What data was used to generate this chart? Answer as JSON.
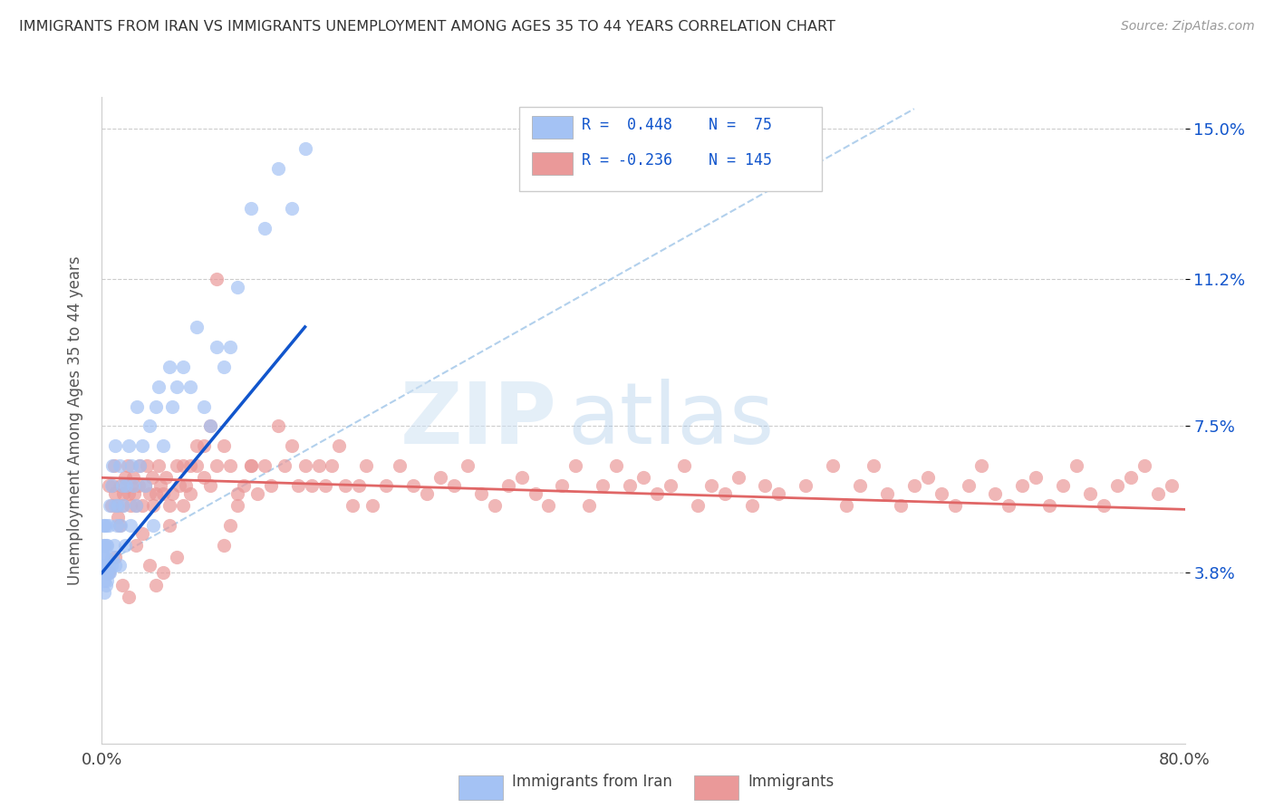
{
  "title": "IMMIGRANTS FROM IRAN VS IMMIGRANTS UNEMPLOYMENT AMONG AGES 35 TO 44 YEARS CORRELATION CHART",
  "source": "Source: ZipAtlas.com",
  "ylabel_ticks": [
    0.038,
    0.075,
    0.112,
    0.15
  ],
  "ylabel_tick_labels": [
    "3.8%",
    "7.5%",
    "11.2%",
    "15.0%"
  ],
  "ylabel": "Unemployment Among Ages 35 to 44 years",
  "legend_labels": [
    "Immigrants from Iran",
    "Immigrants"
  ],
  "legend_R1": "R =  0.448",
  "legend_R2": "R = -0.236",
  "legend_N1": "N =  75",
  "legend_N2": "N = 145",
  "blue_color": "#a4c2f4",
  "pink_color": "#ea9999",
  "blue_fill_color": "#a4c2f4",
  "pink_fill_color": "#f4cccc",
  "blue_line_color": "#1155cc",
  "pink_line_color": "#e06666",
  "diagonal_color": "#9fc5e8",
  "watermark_zip": "ZIP",
  "watermark_atlas": "atlas",
  "xmin": 0.0,
  "xmax": 0.8,
  "ymin": -0.005,
  "ymax": 0.158,
  "blue_scatter_x": [
    0.001,
    0.001,
    0.001,
    0.001,
    0.001,
    0.002,
    0.002,
    0.002,
    0.002,
    0.002,
    0.002,
    0.002,
    0.003,
    0.003,
    0.003,
    0.003,
    0.003,
    0.003,
    0.004,
    0.004,
    0.004,
    0.004,
    0.005,
    0.005,
    0.005,
    0.006,
    0.006,
    0.007,
    0.007,
    0.008,
    0.008,
    0.009,
    0.01,
    0.01,
    0.01,
    0.011,
    0.012,
    0.013,
    0.013,
    0.014,
    0.015,
    0.016,
    0.017,
    0.018,
    0.02,
    0.021,
    0.022,
    0.023,
    0.025,
    0.026,
    0.028,
    0.03,
    0.032,
    0.035,
    0.038,
    0.04,
    0.042,
    0.045,
    0.05,
    0.052,
    0.055,
    0.06,
    0.065,
    0.07,
    0.075,
    0.08,
    0.085,
    0.09,
    0.095,
    0.1,
    0.11,
    0.12,
    0.13,
    0.14,
    0.15
  ],
  "blue_scatter_y": [
    0.038,
    0.04,
    0.042,
    0.045,
    0.05,
    0.033,
    0.036,
    0.038,
    0.04,
    0.042,
    0.045,
    0.05,
    0.035,
    0.038,
    0.04,
    0.042,
    0.045,
    0.05,
    0.036,
    0.038,
    0.04,
    0.045,
    0.038,
    0.04,
    0.05,
    0.038,
    0.055,
    0.04,
    0.06,
    0.042,
    0.065,
    0.045,
    0.04,
    0.055,
    0.07,
    0.05,
    0.055,
    0.04,
    0.065,
    0.05,
    0.06,
    0.055,
    0.045,
    0.06,
    0.07,
    0.05,
    0.065,
    0.06,
    0.055,
    0.08,
    0.065,
    0.07,
    0.06,
    0.075,
    0.05,
    0.08,
    0.085,
    0.07,
    0.09,
    0.08,
    0.085,
    0.09,
    0.085,
    0.1,
    0.08,
    0.075,
    0.095,
    0.09,
    0.095,
    0.11,
    0.13,
    0.125,
    0.14,
    0.13,
    0.145
  ],
  "pink_scatter_x": [
    0.005,
    0.007,
    0.008,
    0.009,
    0.01,
    0.011,
    0.012,
    0.013,
    0.014,
    0.015,
    0.016,
    0.017,
    0.018,
    0.019,
    0.02,
    0.021,
    0.022,
    0.023,
    0.024,
    0.025,
    0.027,
    0.028,
    0.03,
    0.032,
    0.033,
    0.035,
    0.037,
    0.038,
    0.04,
    0.042,
    0.043,
    0.045,
    0.047,
    0.05,
    0.052,
    0.055,
    0.057,
    0.06,
    0.062,
    0.065,
    0.07,
    0.075,
    0.08,
    0.085,
    0.09,
    0.095,
    0.1,
    0.105,
    0.11,
    0.115,
    0.12,
    0.125,
    0.13,
    0.135,
    0.14,
    0.145,
    0.15,
    0.155,
    0.16,
    0.165,
    0.17,
    0.175,
    0.18,
    0.185,
    0.19,
    0.195,
    0.2,
    0.21,
    0.22,
    0.23,
    0.24,
    0.25,
    0.26,
    0.27,
    0.28,
    0.29,
    0.3,
    0.31,
    0.32,
    0.33,
    0.34,
    0.35,
    0.36,
    0.37,
    0.38,
    0.39,
    0.4,
    0.41,
    0.42,
    0.43,
    0.44,
    0.45,
    0.46,
    0.47,
    0.48,
    0.49,
    0.5,
    0.52,
    0.54,
    0.55,
    0.56,
    0.57,
    0.58,
    0.59,
    0.6,
    0.61,
    0.62,
    0.63,
    0.64,
    0.65,
    0.66,
    0.67,
    0.68,
    0.69,
    0.7,
    0.71,
    0.72,
    0.73,
    0.74,
    0.75,
    0.76,
    0.77,
    0.78,
    0.79,
    0.005,
    0.01,
    0.015,
    0.02,
    0.025,
    0.03,
    0.035,
    0.04,
    0.045,
    0.05,
    0.055,
    0.06,
    0.065,
    0.07,
    0.075,
    0.08,
    0.085,
    0.09,
    0.095,
    0.1,
    0.11
  ],
  "pink_scatter_y": [
    0.06,
    0.055,
    0.06,
    0.065,
    0.058,
    0.055,
    0.052,
    0.05,
    0.06,
    0.055,
    0.058,
    0.062,
    0.06,
    0.065,
    0.058,
    0.055,
    0.06,
    0.062,
    0.058,
    0.055,
    0.06,
    0.065,
    0.055,
    0.06,
    0.065,
    0.058,
    0.062,
    0.055,
    0.058,
    0.065,
    0.06,
    0.058,
    0.062,
    0.055,
    0.058,
    0.065,
    0.06,
    0.065,
    0.06,
    0.058,
    0.065,
    0.07,
    0.06,
    0.065,
    0.07,
    0.065,
    0.055,
    0.06,
    0.065,
    0.058,
    0.065,
    0.06,
    0.075,
    0.065,
    0.07,
    0.06,
    0.065,
    0.06,
    0.065,
    0.06,
    0.065,
    0.07,
    0.06,
    0.055,
    0.06,
    0.065,
    0.055,
    0.06,
    0.065,
    0.06,
    0.058,
    0.062,
    0.06,
    0.065,
    0.058,
    0.055,
    0.06,
    0.062,
    0.058,
    0.055,
    0.06,
    0.065,
    0.055,
    0.06,
    0.065,
    0.06,
    0.062,
    0.058,
    0.06,
    0.065,
    0.055,
    0.06,
    0.058,
    0.062,
    0.055,
    0.06,
    0.058,
    0.06,
    0.065,
    0.055,
    0.06,
    0.065,
    0.058,
    0.055,
    0.06,
    0.062,
    0.058,
    0.055,
    0.06,
    0.065,
    0.058,
    0.055,
    0.06,
    0.062,
    0.055,
    0.06,
    0.065,
    0.058,
    0.055,
    0.06,
    0.062,
    0.065,
    0.058,
    0.06,
    0.038,
    0.042,
    0.035,
    0.032,
    0.045,
    0.048,
    0.04,
    0.035,
    0.038,
    0.05,
    0.042,
    0.055,
    0.065,
    0.07,
    0.062,
    0.075,
    0.112,
    0.045,
    0.05,
    0.058,
    0.065
  ]
}
